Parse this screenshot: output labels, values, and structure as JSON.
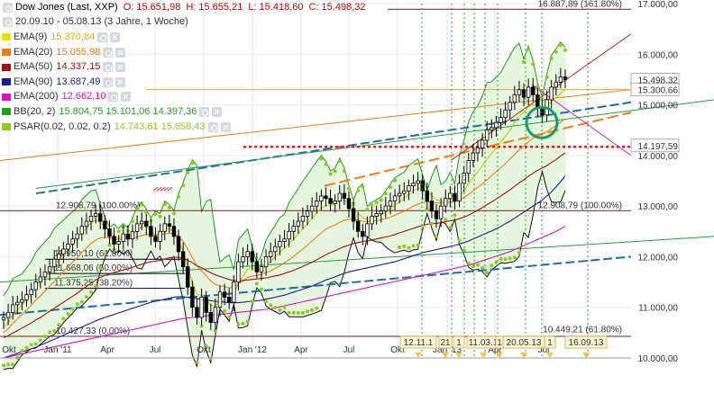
{
  "instrument": {
    "title": "Dow Jones (Last, XXP)",
    "open": "O: 15.651,98",
    "high": "H: 15.655,21",
    "low": "L: 15.418,60",
    "close": "C: 15.498,32",
    "period": "20.09.10 - 05.08.13 (3 Jahre, 1 Woche)"
  },
  "indicators": [
    {
      "label": "EMA(9)",
      "value": "15.370,84",
      "color": "#e5e500"
    },
    {
      "label": "EMA(20)",
      "value": "15.055,98",
      "color": "#f07b10"
    },
    {
      "label": "EMA(50)",
      "value": "14.337,15",
      "color": "#a01010"
    },
    {
      "label": "EMA(90)",
      "value": "13.687,49",
      "color": "#1a1a9a"
    },
    {
      "label": "EMA(200)",
      "value": "12.662,10",
      "color": "#e010c0"
    },
    {
      "label": "BB(20, 2)",
      "value": "15.804,75  15.101,06  14.397,36",
      "color": "#20a020"
    },
    {
      "label": "PSAR(0.02, 0.02, 0.2)",
      "value": "14.743,61  15.658,43",
      "color": "#90c820"
    }
  ],
  "chart_data": {
    "type": "line",
    "x_ticks": [
      "Okt",
      "Jan '11",
      "Apr",
      "Jul",
      "Okt",
      "Jan '12",
      "Apr",
      "Jul",
      "Okt",
      "Jan '13",
      "Apr",
      "Jul"
    ],
    "y_ticks": [
      "17.000,00",
      "16.000,00",
      "15.000,00",
      "14.000,00",
      "13.000,00",
      "12.000,00",
      "11.000,00",
      "10.000,00"
    ],
    "y_tick_values": [
      17000,
      16000,
      15000,
      14000,
      13000,
      12000,
      11000,
      10000
    ],
    "ylim": [
      10000,
      17200
    ],
    "price_labels": [
      {
        "text": "15.498,32",
        "value": 15498,
        "color": "#000000"
      },
      {
        "text": "15.300,66",
        "value": 15300,
        "color": "#000000"
      },
      {
        "text": "14.197,59",
        "value": 14197,
        "color": "#000000"
      }
    ],
    "fib_levels": [
      {
        "label": "16.887,89 (161.80%)",
        "value": 16888,
        "color": "#7a2020",
        "side": "right"
      },
      {
        "label": "12.908,79 (100.00%)",
        "value": 12909,
        "color": "#7a2020",
        "side": "left"
      },
      {
        "label": "12.908,79 (100.00%)",
        "value": 12909,
        "color": "#7a2020",
        "side": "right"
      },
      {
        "label": "11.950,10 (61.80%)",
        "value": 11950,
        "color": "#000000",
        "side": "left"
      },
      {
        "label": "11.668,06 (50.00%)",
        "value": 11668,
        "color": "#000000",
        "side": "left"
      },
      {
        "label": "11.375,25 (38.20%)",
        "value": 11375,
        "color": "#000000",
        "side": "left"
      },
      {
        "label": "10.427,33 (0.00%)",
        "value": 10427,
        "color": "#7a2020",
        "side": "left"
      },
      {
        "label": "10.449,21 (61.80%)",
        "value": 10449,
        "color": "#7a2020",
        "side": "right"
      }
    ],
    "event_markers": [
      "12.11.1",
      "21",
      "1",
      "11.03.1",
      "1",
      "20.05.13",
      "1",
      "16.09.13"
    ],
    "series": [
      {
        "name": "Dow Jones",
        "values": [
          10800,
          10900,
          11050,
          11100,
          11150,
          11250,
          11350,
          11500,
          11600,
          11700,
          11800,
          11950,
          12050,
          12150,
          12250,
          12350,
          12450,
          12600,
          12700,
          12800,
          12850,
          12700,
          12550,
          12400,
          12250,
          12300,
          12450,
          12350,
          12500,
          12650,
          12700,
          12600,
          12400,
          12300,
          12500,
          12650,
          12600,
          12400,
          12100,
          11800,
          11400,
          11000,
          10800,
          11200,
          10900,
          10700,
          11000,
          11300,
          11200,
          11100,
          11500,
          11900,
          12000,
          12100,
          11900,
          11700,
          11800,
          12000,
          12100,
          12200,
          12300,
          12350,
          12500,
          12600,
          12700,
          12800,
          12900,
          13000,
          13100,
          13200,
          13150,
          13050,
          13100,
          13250,
          13150,
          12950,
          12700,
          12500,
          12400,
          12650,
          12800,
          12850,
          12900,
          13000,
          13100,
          13200,
          13250,
          13300,
          13400,
          13450,
          13500,
          13300,
          13100,
          12900,
          12750,
          13000,
          13150,
          13250,
          13100,
          13450,
          13650,
          13900,
          14050,
          14150,
          14300,
          14500,
          14550,
          14650,
          14750,
          14900,
          15050,
          15200,
          15300,
          15150,
          15350,
          15200,
          14950,
          14800,
          15100,
          15350,
          15450,
          15550,
          15500
        ]
      },
      {
        "name": "EMA(9)",
        "values": [
          10600,
          10700,
          10850,
          10950,
          11050,
          11150,
          11250,
          11400,
          11500,
          11600,
          11700,
          11820,
          11940,
          12050,
          12150,
          12250,
          12350,
          12470,
          12570,
          12670,
          12720,
          12680,
          12600,
          12500,
          12400,
          12370,
          12400,
          12380,
          12420,
          12520,
          12590,
          12590,
          12510,
          12430,
          12460,
          12540,
          12560,
          12490,
          12320,
          12100,
          11800,
          11500,
          11250,
          11240,
          11160,
          11040,
          11030,
          11110,
          11140,
          11130,
          11250,
          11460,
          11620,
          11750,
          11780,
          11760,
          11770,
          11830,
          11900,
          12000,
          12090,
          12170,
          12260,
          12350,
          12450,
          12550,
          12650,
          12750,
          12860,
          12960,
          13010,
          13020,
          13040,
          13100,
          13110,
          13070,
          12970,
          12860,
          12770,
          12740,
          12770,
          12790,
          12830,
          12880,
          12950,
          13020,
          13090,
          13150,
          13230,
          13300,
          13350,
          13340,
          13290,
          13210,
          13120,
          13100,
          13110,
          13140,
          13130,
          13200,
          13300,
          13440,
          13560,
          13680,
          13800,
          13930,
          14040,
          14150,
          14260,
          14380,
          14510,
          14650,
          14780,
          14850,
          14950,
          15000,
          14990,
          14950,
          14980,
          15060,
          15140,
          15230,
          15300
        ]
      },
      {
        "name": "EMA(20)",
        "values": [
          10500,
          10580,
          10680,
          10770,
          10860,
          10950,
          11040,
          11140,
          11230,
          11320,
          11410,
          11510,
          11610,
          11710,
          11800,
          11890,
          11980,
          12080,
          12170,
          12260,
          12330,
          12370,
          12380,
          12370,
          12350,
          12340,
          12350,
          12350,
          12360,
          12390,
          12420,
          12440,
          12440,
          12420,
          12430,
          12450,
          12460,
          12460,
          12400,
          12300,
          12150,
          11980,
          11820,
          11720,
          11620,
          11520,
          11450,
          11430,
          11410,
          11380,
          11400,
          11460,
          11520,
          11590,
          11620,
          11630,
          11650,
          11680,
          11720,
          11770,
          11820,
          11880,
          11940,
          12010,
          12080,
          12150,
          12230,
          12310,
          12390,
          12470,
          12540,
          12590,
          12630,
          12680,
          12720,
          12740,
          12740,
          12720,
          12700,
          12690,
          12700,
          12710,
          12730,
          12750,
          12780,
          12820,
          12860,
          12900,
          12950,
          13000,
          13040,
          13070,
          13080,
          13080,
          13060,
          13060,
          13070,
          13080,
          13090,
          13120,
          13170,
          13230,
          13300,
          13370,
          13440,
          13520,
          13600,
          13680,
          13760,
          13840,
          13930,
          14020,
          14110,
          14190,
          14270,
          14340,
          14390,
          14420,
          14470,
          14530,
          14590,
          14660,
          14720
        ]
      },
      {
        "name": "EMA(50)",
        "values": [
          10400,
          10440,
          10490,
          10540,
          10590,
          10640,
          10690,
          10750,
          10800,
          10860,
          10920,
          10980,
          11040,
          11100,
          11160,
          11220,
          11280,
          11350,
          11410,
          11480,
          11540,
          11590,
          11630,
          11660,
          11690,
          11710,
          11740,
          11760,
          11790,
          11820,
          11850,
          11880,
          11900,
          11910,
          11930,
          11950,
          11980,
          11990,
          11990,
          11970,
          11930,
          11880,
          11820,
          11780,
          11730,
          11680,
          11640,
          11610,
          11580,
          11550,
          11530,
          11530,
          11530,
          11540,
          11550,
          11560,
          11570,
          11580,
          11600,
          11620,
          11640,
          11670,
          11700,
          11730,
          11770,
          11810,
          11850,
          11890,
          11940,
          11990,
          12040,
          12080,
          12120,
          12160,
          12200,
          12230,
          12260,
          12280,
          12300,
          12310,
          12330,
          12350,
          12370,
          12390,
          12410,
          12440,
          12470,
          12500,
          12530,
          12560,
          12590,
          12620,
          12640,
          12650,
          12660,
          12670,
          12690,
          12710,
          12720,
          12750,
          12780,
          12820,
          12870,
          12920,
          12970,
          13030,
          13080,
          13140,
          13200,
          13260,
          13320,
          13390,
          13460,
          13520,
          13590,
          13650,
          13710,
          13750,
          13800,
          13860,
          13920,
          13990,
          14050
        ]
      },
      {
        "name": "EMA(90)",
        "values": [
          10000,
          10030,
          10060,
          10090,
          10120,
          10150,
          10180,
          10210,
          10250,
          10290,
          10330,
          10370,
          10410,
          10450,
          10490,
          10530,
          10570,
          10610,
          10650,
          10690,
          10730,
          10770,
          10800,
          10830,
          10860,
          10890,
          10920,
          10950,
          10980,
          11010,
          11040,
          11070,
          11100,
          11120,
          11140,
          11160,
          11180,
          11200,
          11210,
          11210,
          11200,
          11190,
          11170,
          11160,
          11150,
          11130,
          11120,
          11110,
          11100,
          11090,
          11090,
          11090,
          11100,
          11110,
          11120,
          11130,
          11140,
          11160,
          11180,
          11200,
          11220,
          11240,
          11270,
          11300,
          11330,
          11360,
          11390,
          11420,
          11460,
          11500,
          11540,
          11570,
          11600,
          11640,
          11670,
          11700,
          11720,
          11740,
          11760,
          11780,
          11800,
          11820,
          11840,
          11860,
          11880,
          11900,
          11930,
          11960,
          11990,
          12020,
          12050,
          12080,
          12100,
          12120,
          12140,
          12160,
          12180,
          12200,
          12220,
          12250,
          12280,
          12310,
          12350,
          12390,
          12430,
          12470,
          12510,
          12550,
          12600,
          12650,
          12700,
          12760,
          12820,
          12880,
          12940,
          13000,
          13060,
          13120,
          13200,
          13280,
          13380,
          13480,
          13600
        ]
      },
      {
        "name": "EMA(200)",
        "values": [
          10000,
          10020,
          10040,
          10060,
          10080,
          10100,
          10120,
          10140,
          10160,
          10180,
          10200,
          10220,
          10240,
          10260,
          10280,
          10300,
          10320,
          10340,
          10360,
          10380,
          10400,
          10420,
          10440,
          10460,
          10480,
          10500,
          10520,
          10540,
          10560,
          10580,
          10600,
          10620,
          10640,
          10660,
          10680,
          10700,
          10720,
          10740,
          10760,
          10780,
          10790,
          10800,
          10810,
          10820,
          10830,
          10840,
          10850,
          10860,
          10870,
          10880,
          10890,
          10900,
          10910,
          10920,
          10930,
          10940,
          10950,
          10960,
          10970,
          10990,
          11010,
          11030,
          11050,
          11070,
          11090,
          11110,
          11130,
          11150,
          11170,
          11190,
          11210,
          11230,
          11250,
          11270,
          11290,
          11310,
          11330,
          11350,
          11370,
          11390,
          11410,
          11430,
          11450,
          11470,
          11490,
          11510,
          11530,
          11550,
          11570,
          11590,
          11610,
          11630,
          11650,
          11670,
          11690,
          11710,
          11730,
          11750,
          11770,
          11790,
          11810,
          11830,
          11860,
          11890,
          11920,
          11950,
          11980,
          12010,
          12040,
          12070,
          12100,
          12140,
          12180,
          12220,
          12260,
          12300,
          12340,
          12380,
          12420,
          12460,
          12500,
          12550,
          12600
        ]
      }
    ]
  }
}
